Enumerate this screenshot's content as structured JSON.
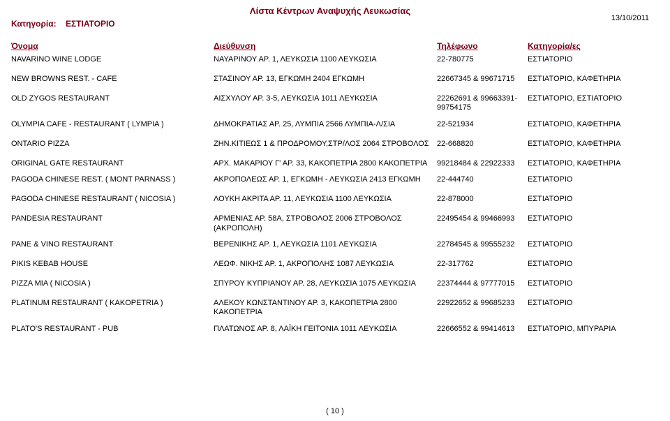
{
  "report": {
    "title": "Λίστα Κέντρων Αναψυχής Λευκωσίας",
    "date": "13/10/2011",
    "category_label": "Κατηγορία:",
    "category_value": "ΕΣΤΙΑΤΟΡΙΟ",
    "headers": {
      "name": "Όνομα",
      "address": "Διεύθυνση",
      "phone": "Τηλέφωνο",
      "categories": "Κατηγορία/ες"
    },
    "footer": "( 10 )"
  },
  "rows": [
    {
      "name": "NAVARINO  WINE  LODGE",
      "addr": "ΝΑΥΑΡΙΝΟΥ ΑΡ. 1, ΛΕΥΚΩΣΙΑ 1100  ΛΕΥΚΩΣΙΑ",
      "tel": "22-780775",
      "cat": "ΕΣΤΙΑΤΟΡΙΟ"
    },
    {
      "name": "NEW BROWNS REST. - CAFE",
      "addr": "ΣΤΑΣΙΝΟΥ ΑΡ. 13, ΕΓΚΩΜΗ 2404  ΕΓΚΩΜΗ",
      "tel": "22667345 & 99671715",
      "cat": "ΕΣΤΙΑΤΟΡΙΟ, ΚΑΦΕΤΗΡΙΑ",
      "gap": true
    },
    {
      "name": "OLD ZYGOS RESTAURANT",
      "addr": "ΑΙΣΧΥΛΟΥ ΑΡ. 3-5, ΛΕΥΚΩΣΙΑ 1011  ΛΕΥΚΩΣΙΑ",
      "tel": "22262691 & 99663391-99754175",
      "cat": "ΕΣΤΙΑΤΟΡΙΟ, ΕΣΤΙΑΤΟΡΙΟ",
      "gap": true
    },
    {
      "name": "OLYMPIA CAFE - RESTAURANT ( LYMPIA )",
      "addr": "ΔΗΜΟΚΡΑΤΙΑΣ ΑΡ. 25, ΛΥΜΠΙΑ 2566  ΛΥΜΠΙΑ-Λ/ΣΙΑ",
      "tel": "22-521934",
      "cat": "ΕΣΤΙΑΤΟΡΙΟ, ΚΑΦΕΤΗΡΙΑ"
    },
    {
      "name": "ONTARIO PIZZA",
      "addr": "ΖΗΝ.ΚΙΤΙΕΩΣ 1 & ΠΡΟΔΡΟΜΟΥ,ΣΤΡ/ΛΟΣ 2064 ΣΤΡΟΒΟΛΟΣ",
      "tel": "22-668820",
      "cat": "ΕΣΤΙΑΤΟΡΙΟ, ΚΑΦΕΤΗΡΙΑ",
      "gap": true
    },
    {
      "name": "ORIGINAL GATE RESTAURANT",
      "addr": "ΑΡΧ. ΜΑΚΑΡΙΟΥ Γ' ΑΡ. 33, ΚΑΚΟΠΕΤΡΙΑ 2800  ΚΑΚΟΠΕΤΡΙΑ",
      "tel": "99218484 & 22922333",
      "cat": "ΕΣΤΙΑΤΟΡΙΟ, ΚΑΦΕΤΗΡΙΑ",
      "gap": true
    },
    {
      "name": "PAGODA CHINESE REST. ( MONT PARNASS )",
      "addr": "ΑΚΡΟΠΟΛΕΩΣ  ΑΡ. 1, ΕΓΚΩΜΗ - ΛΕΥΚΩΣΙΑ 2413  ΕΓΚΩΜΗ",
      "tel": "22-444740",
      "cat": "ΕΣΤΙΑΤΟΡΙΟ"
    },
    {
      "name": "PAGODA CHINESE RESTAURANT ( NICOSIA )",
      "addr": "ΛΟΥΚΗ ΑΚΡΙΤΑ ΑΡ. 11, ΛΕΥΚΩΣΙΑ 1100  ΛΕΥΚΩΣΙΑ",
      "tel": "22-878000",
      "cat": "ΕΣΤΙΑΤΟΡΙΟ",
      "gap": true
    },
    {
      "name": "PANDESIA RESTAURANT",
      "addr": "ΑΡΜΕΝΙΑΣ ΑΡ. 58Α, ΣΤΡΟΒΟΛΟΣ 2006  ΣΤΡΟΒΟΛΟΣ (ΑΚΡΟΠΟΛΗ)",
      "tel": "22495454 & 99466993",
      "cat": "ΕΣΤΙΑΤΟΡΙΟ",
      "gap": true
    },
    {
      "name": "PANE & VINO RESTAURANT",
      "addr": "ΒΕΡΕΝΙΚΗΣ  ΑΡ. 1, ΛΕΥΚΩΣΙΑ 1101  ΛΕΥΚΩΣΙΑ",
      "tel": "22784545 & 99555232",
      "cat": "ΕΣΤΙΑΤΟΡΙΟ"
    },
    {
      "name": "PIKIS  KEBAB  HOUSE",
      "addr": "ΛΕΩΦ. ΝΙΚΗΣ ΑΡ. 1, ΑΚΡΟΠΟΛΗΣ 1087  ΛΕΥΚΩΣΙΑ",
      "tel": "22-317762",
      "cat": "ΕΣΤΙΑΤΟΡΙΟ",
      "gap": true
    },
    {
      "name": "PIZZA MIA ( NICOSIA )",
      "addr": "ΣΠΥΡΟΥ ΚΥΠΡΙΑΝΟΥ ΑΡ. 28, ΛΕΥΚΩΣΙΑ 1075  ΛΕΥΚΩΣΙΑ",
      "tel": "22374444 & 97777015",
      "cat": "ΕΣΤΙΑΤΟΡΙΟ",
      "gap": true
    },
    {
      "name": "PLATINUM  RESTAURANT ( KAKOPETRIA )",
      "addr": "ΑΛΕΚΟΥ ΚΩΝΣΤΑΝΤΙΝΟΥ ΑΡ. 3, ΚΑΚΟΠΕΤΡΙΑ 2800  ΚΑΚΟΠΕΤΡΙΑ",
      "tel": "22922652 & 99685233",
      "cat": "ΕΣΤΙΑΤΟΡΙΟ",
      "gap": true
    },
    {
      "name": "PLATO'S RESTAURANT - PUB",
      "addr": "ΠΛΑΤΩΝΟΣ  ΑΡ. 8, ΛΑΪΚΗ ΓΕΙΤΟΝΙΑ 1011  ΛΕΥΚΩΣΙΑ",
      "tel": "22666552 & 99414613",
      "cat": "ΕΣΤΙΑΤΟΡΙΟ, ΜΠΥΡΑΡΙΑ"
    }
  ]
}
